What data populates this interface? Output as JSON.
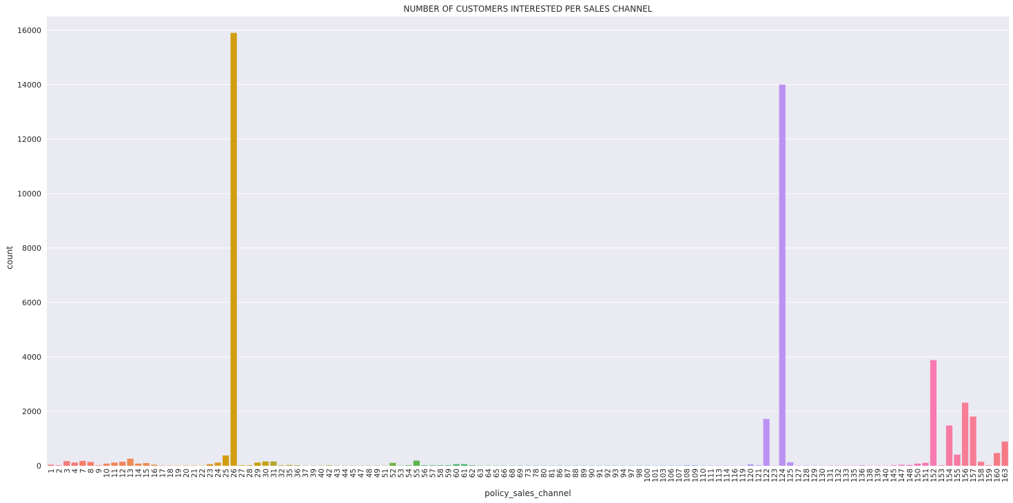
{
  "chart_data": {
    "type": "bar",
    "title": "NUMBER OF CUSTOMERS INTERESTED PER SALES CHANNEL",
    "xlabel": "policy_sales_channel",
    "ylabel": "count",
    "ylim": [
      0,
      16500
    ],
    "yticks": [
      0,
      2000,
      4000,
      6000,
      8000,
      10000,
      12000,
      14000,
      16000
    ],
    "grid": true,
    "background": "#eaeaf2",
    "categories": [
      "1",
      "2",
      "3",
      "4",
      "7",
      "8",
      "9",
      "10",
      "11",
      "12",
      "13",
      "14",
      "15",
      "16",
      "17",
      "18",
      "19",
      "20",
      "21",
      "22",
      "23",
      "24",
      "25",
      "26",
      "27",
      "28",
      "29",
      "30",
      "31",
      "32",
      "35",
      "36",
      "37",
      "39",
      "40",
      "42",
      "43",
      "44",
      "45",
      "47",
      "48",
      "49",
      "51",
      "52",
      "53",
      "54",
      "55",
      "56",
      "57",
      "58",
      "59",
      "60",
      "61",
      "62",
      "63",
      "64",
      "65",
      "66",
      "68",
      "69",
      "73",
      "78",
      "80",
      "81",
      "86",
      "87",
      "88",
      "89",
      "90",
      "91",
      "92",
      "93",
      "94",
      "97",
      "98",
      "100",
      "101",
      "103",
      "106",
      "107",
      "108",
      "109",
      "110",
      "111",
      "113",
      "114",
      "116",
      "119",
      "120",
      "121",
      "122",
      "123",
      "124",
      "125",
      "127",
      "128",
      "129",
      "130",
      "131",
      "132",
      "133",
      "135",
      "136",
      "138",
      "139",
      "140",
      "145",
      "147",
      "148",
      "150",
      "151",
      "152",
      "153",
      "154",
      "155",
      "156",
      "157",
      "158",
      "159",
      "160",
      "163"
    ],
    "values": [
      40,
      20,
      170,
      120,
      180,
      140,
      20,
      80,
      120,
      150,
      260,
      80,
      100,
      40,
      10,
      10,
      10,
      10,
      10,
      10,
      60,
      120,
      380,
      15900,
      20,
      20,
      120,
      160,
      160,
      20,
      30,
      20,
      10,
      10,
      10,
      20,
      10,
      10,
      10,
      10,
      10,
      10,
      10,
      110,
      10,
      20,
      190,
      20,
      20,
      20,
      20,
      60,
      60,
      20,
      10,
      10,
      10,
      10,
      10,
      10,
      10,
      10,
      10,
      10,
      10,
      10,
      10,
      10,
      10,
      10,
      10,
      10,
      10,
      10,
      10,
      10,
      10,
      10,
      10,
      10,
      20,
      20,
      10,
      10,
      10,
      10,
      10,
      10,
      50,
      20,
      1720,
      10,
      14000,
      130,
      10,
      10,
      10,
      10,
      10,
      10,
      10,
      10,
      20,
      10,
      10,
      10,
      20,
      40,
      30,
      80,
      110,
      3880,
      20,
      1480,
      410,
      2320,
      1810,
      150,
      20,
      470,
      890
    ],
    "colors": [
      "#f67a7a",
      "#f77f6a",
      "#f2855f",
      "#ee8a52",
      "#e88f43",
      "#e09433",
      "#d89a22",
      "#d09e0f",
      "#c4a212",
      "#b7a632",
      "#a9aa3c",
      "#9aad40",
      "#88b043",
      "#74b245",
      "#5ab54a",
      "#4ab65e",
      "#49b673",
      "#4ab584",
      "#4bb493",
      "#4cb3a0",
      "#4db2ac",
      "#4db2b7",
      "#4fb1c2",
      "#54afcd",
      "#5caed9",
      "#6aabe3",
      "#7fa6ed",
      "#969ff3",
      "#ab98f5",
      "#bd91f3",
      "#cd8aee",
      "#da83e6",
      "#e57ddc",
      "#ee79cf",
      "#f478c1",
      "#f779b2",
      "#f77ba3",
      "#f77d95",
      "#f67a86"
    ]
  }
}
